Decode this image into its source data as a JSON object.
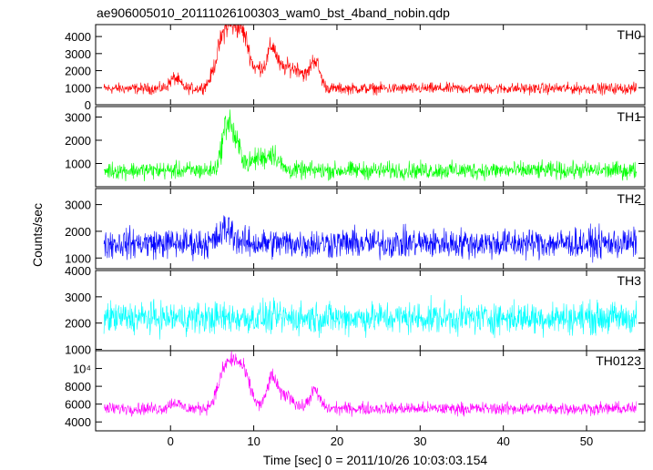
{
  "chart_data": {
    "type": "line",
    "title": "ae906005010_20111026100303_wam0_bst_4band_nobin.qdp",
    "xlabel": "Time [sec] 0 = 2011/10/26 10:03:03.154",
    "ylabel": "Counts/sec",
    "xlim": [
      -9,
      57
    ],
    "xticks": [
      0,
      10,
      20,
      30,
      40,
      50
    ],
    "xtick_labels": [
      "0",
      "10",
      "20",
      "30",
      "40",
      "50"
    ],
    "x_range": [
      -8,
      56
    ],
    "grid": false,
    "panels": [
      {
        "name": "TH0",
        "color": "#ff0000",
        "ylim": [
          0,
          4700
        ],
        "yticks": [
          0,
          1000,
          2000,
          3000,
          4000
        ],
        "ytick_labels": [
          "0",
          "1000",
          "2000",
          "3000",
          "4000"
        ],
        "baseline": 950,
        "noise": 280,
        "peaks": [
          {
            "t": 0.5,
            "amp": 600,
            "w": 0.6
          },
          {
            "t": 6.2,
            "amp": 1600,
            "w": 0.9
          },
          {
            "t": 7.6,
            "amp": 2900,
            "w": 1.2
          },
          {
            "t": 9.0,
            "amp": 1500,
            "w": 0.8
          },
          {
            "t": 10.8,
            "amp": 900,
            "w": 0.5
          },
          {
            "t": 12.2,
            "amp": 2400,
            "w": 0.6
          },
          {
            "t": 14.0,
            "amp": 1200,
            "w": 0.8
          },
          {
            "t": 15.5,
            "amp": 900,
            "w": 0.6
          },
          {
            "t": 17.3,
            "amp": 1700,
            "w": 0.6
          }
        ]
      },
      {
        "name": "TH1",
        "color": "#00ff00",
        "ylim": [
          0,
          3450
        ],
        "yticks": [
          1000,
          2000,
          3000
        ],
        "ytick_labels": [
          "1000",
          "2000",
          "3000"
        ],
        "baseline": 700,
        "noise": 320,
        "peaks": [
          {
            "t": 6.8,
            "amp": 1900,
            "w": 0.6
          },
          {
            "t": 8.0,
            "amp": 900,
            "w": 0.7
          },
          {
            "t": 10.5,
            "amp": 500,
            "w": 0.8
          },
          {
            "t": 12.3,
            "amp": 700,
            "w": 0.7
          }
        ]
      },
      {
        "name": "TH2",
        "color": "#0000ff",
        "ylim": [
          600,
          3600
        ],
        "yticks": [
          1000,
          2000,
          3000
        ],
        "ytick_labels": [
          "1000",
          "2000",
          "3000"
        ],
        "baseline": 1550,
        "noise": 480,
        "peaks": [
          {
            "t": 6.8,
            "amp": 550,
            "w": 0.8
          }
        ]
      },
      {
        "name": "TH3",
        "color": "#00ffff",
        "ylim": [
          950,
          4000
        ],
        "yticks": [
          1000,
          2000,
          3000,
          4000
        ],
        "ytick_labels": [
          "1000",
          "2000",
          "3000",
          "4000"
        ],
        "baseline": 2200,
        "noise": 520,
        "peaks": []
      },
      {
        "name": "TH0123",
        "color": "#ff00ff",
        "ylim": [
          3000,
          12000
        ],
        "yticks": [
          4000,
          6000,
          8000,
          10000
        ],
        "ytick_labels": [
          "4000",
          "6000",
          "8000",
          "10⁴"
        ],
        "baseline": 5500,
        "noise": 600,
        "peaks": [
          {
            "t": 0.5,
            "amp": 700,
            "w": 0.6
          },
          {
            "t": 6.3,
            "amp": 2000,
            "w": 0.8
          },
          {
            "t": 7.6,
            "amp": 4500,
            "w": 1.1
          },
          {
            "t": 9.0,
            "amp": 2000,
            "w": 0.8
          },
          {
            "t": 12.2,
            "amp": 3500,
            "w": 0.6
          },
          {
            "t": 14.0,
            "amp": 1500,
            "w": 0.8
          },
          {
            "t": 17.3,
            "amp": 2000,
            "w": 0.6
          }
        ]
      }
    ]
  }
}
